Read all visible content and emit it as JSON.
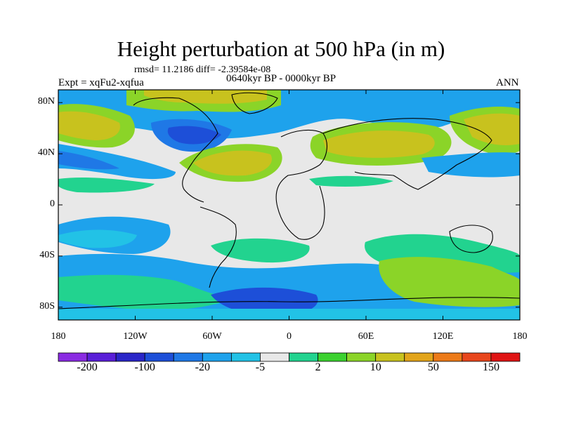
{
  "title": "Height perturbation at 500 hPa (in m)",
  "stats_line": "rmsd= 11.2186 diff= -2.39584e-08",
  "experiment": "Expt = xqFu2-xqfua",
  "period": "0640kyr BP - 0000kyr BP",
  "season": "ANN",
  "map": {
    "projection": "cylindrical equidistant",
    "lon_range": [
      -180,
      180
    ],
    "lat_range": [
      -90,
      90
    ],
    "y_ticks": [
      {
        "label": "80N",
        "lat": 80
      },
      {
        "label": "40N",
        "lat": 40
      },
      {
        "label": "0",
        "lat": 0
      },
      {
        "label": "40S",
        "lat": -40
      },
      {
        "label": "80S",
        "lat": -80
      }
    ],
    "x_ticks": [
      {
        "label": "180",
        "lon": -180
      },
      {
        "label": "120W",
        "lon": -120
      },
      {
        "label": "60W",
        "lon": -60
      },
      {
        "label": "0",
        "lon": 0
      },
      {
        "label": "60E",
        "lon": 60
      },
      {
        "label": "120E",
        "lon": 120
      },
      {
        "label": "180",
        "lon": 180
      }
    ]
  },
  "colorbar": {
    "colors": [
      "#8a2be2",
      "#5a1fd8",
      "#2a26c8",
      "#1d4fd8",
      "#1f78e6",
      "#1ea2ec",
      "#22c2e6",
      "#e8e8e8",
      "#22d38f",
      "#3bd12f",
      "#8bd428",
      "#c8c21e",
      "#e2a41a",
      "#ec7a18",
      "#e8461c",
      "#e01414"
    ],
    "labels": [
      "-200",
      "-100",
      "-20",
      "-5",
      "2",
      "10",
      "50",
      "150"
    ]
  }
}
